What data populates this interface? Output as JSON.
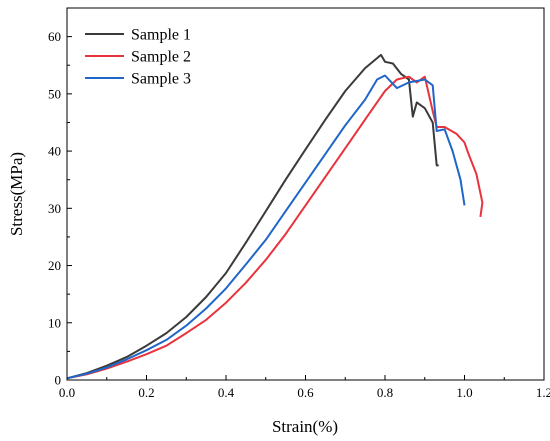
{
  "chart_data": {
    "type": "line",
    "xlabel": "Strain(%)",
    "ylabel": "Stress(MPa)",
    "xlim": [
      0.0,
      1.2
    ],
    "ylim": [
      0,
      65
    ],
    "xticks": [
      "0.0",
      "0.2",
      "0.4",
      "0.6",
      "0.8",
      "1.0",
      "1.2"
    ],
    "yticks": [
      "0",
      "10",
      "20",
      "30",
      "40",
      "50",
      "60"
    ],
    "grid": false,
    "legend_position": "top-left",
    "series": [
      {
        "name": "Sample 1",
        "color": "#3a3a3a",
        "points": [
          [
            0.0,
            0.3
          ],
          [
            0.05,
            1.2
          ],
          [
            0.1,
            2.5
          ],
          [
            0.15,
            4.0
          ],
          [
            0.2,
            6.0
          ],
          [
            0.25,
            8.2
          ],
          [
            0.3,
            11.0
          ],
          [
            0.35,
            14.5
          ],
          [
            0.4,
            18.7
          ],
          [
            0.45,
            24.0
          ],
          [
            0.5,
            29.5
          ],
          [
            0.55,
            35.0
          ],
          [
            0.6,
            40.3
          ],
          [
            0.65,
            45.5
          ],
          [
            0.7,
            50.5
          ],
          [
            0.75,
            54.5
          ],
          [
            0.79,
            56.8
          ],
          [
            0.8,
            55.6
          ],
          [
            0.82,
            55.3
          ],
          [
            0.84,
            53.5
          ],
          [
            0.86,
            52.5
          ],
          [
            0.87,
            46.0
          ],
          [
            0.88,
            48.5
          ],
          [
            0.9,
            47.5
          ],
          [
            0.92,
            45.0
          ],
          [
            0.93,
            37.5
          ],
          [
            0.935,
            37.5
          ]
        ]
      },
      {
        "name": "Sample 2",
        "color": "#e8333c",
        "points": [
          [
            0.0,
            0.3
          ],
          [
            0.05,
            1.0
          ],
          [
            0.1,
            2.0
          ],
          [
            0.15,
            3.2
          ],
          [
            0.2,
            4.5
          ],
          [
            0.25,
            6.0
          ],
          [
            0.3,
            8.2
          ],
          [
            0.35,
            10.5
          ],
          [
            0.4,
            13.5
          ],
          [
            0.45,
            17.0
          ],
          [
            0.5,
            21.0
          ],
          [
            0.55,
            25.5
          ],
          [
            0.6,
            30.5
          ],
          [
            0.65,
            35.5
          ],
          [
            0.7,
            40.5
          ],
          [
            0.75,
            45.5
          ],
          [
            0.8,
            50.5
          ],
          [
            0.83,
            52.5
          ],
          [
            0.86,
            53.0
          ],
          [
            0.88,
            52.0
          ],
          [
            0.9,
            53.0
          ],
          [
            0.92,
            47.0
          ],
          [
            0.93,
            44.2
          ],
          [
            0.95,
            44.2
          ],
          [
            0.98,
            43.0
          ],
          [
            1.0,
            41.5
          ],
          [
            1.01,
            39.5
          ],
          [
            1.03,
            36.0
          ],
          [
            1.045,
            31.0
          ],
          [
            1.04,
            28.5
          ]
        ]
      },
      {
        "name": "Sample 3",
        "color": "#1f66c8",
        "points": [
          [
            0.0,
            0.3
          ],
          [
            0.05,
            1.1
          ],
          [
            0.1,
            2.2
          ],
          [
            0.15,
            3.6
          ],
          [
            0.2,
            5.2
          ],
          [
            0.25,
            7.0
          ],
          [
            0.3,
            9.5
          ],
          [
            0.35,
            12.5
          ],
          [
            0.4,
            16.0
          ],
          [
            0.45,
            20.2
          ],
          [
            0.5,
            24.5
          ],
          [
            0.55,
            29.5
          ],
          [
            0.6,
            34.5
          ],
          [
            0.65,
            39.5
          ],
          [
            0.7,
            44.5
          ],
          [
            0.75,
            49.0
          ],
          [
            0.78,
            52.5
          ],
          [
            0.8,
            53.2
          ],
          [
            0.83,
            51.0
          ],
          [
            0.86,
            52.0
          ],
          [
            0.9,
            52.5
          ],
          [
            0.92,
            51.5
          ],
          [
            0.93,
            43.5
          ],
          [
            0.95,
            43.8
          ],
          [
            0.97,
            40.0
          ],
          [
            0.99,
            35.0
          ],
          [
            1.0,
            30.5
          ]
        ]
      }
    ]
  }
}
